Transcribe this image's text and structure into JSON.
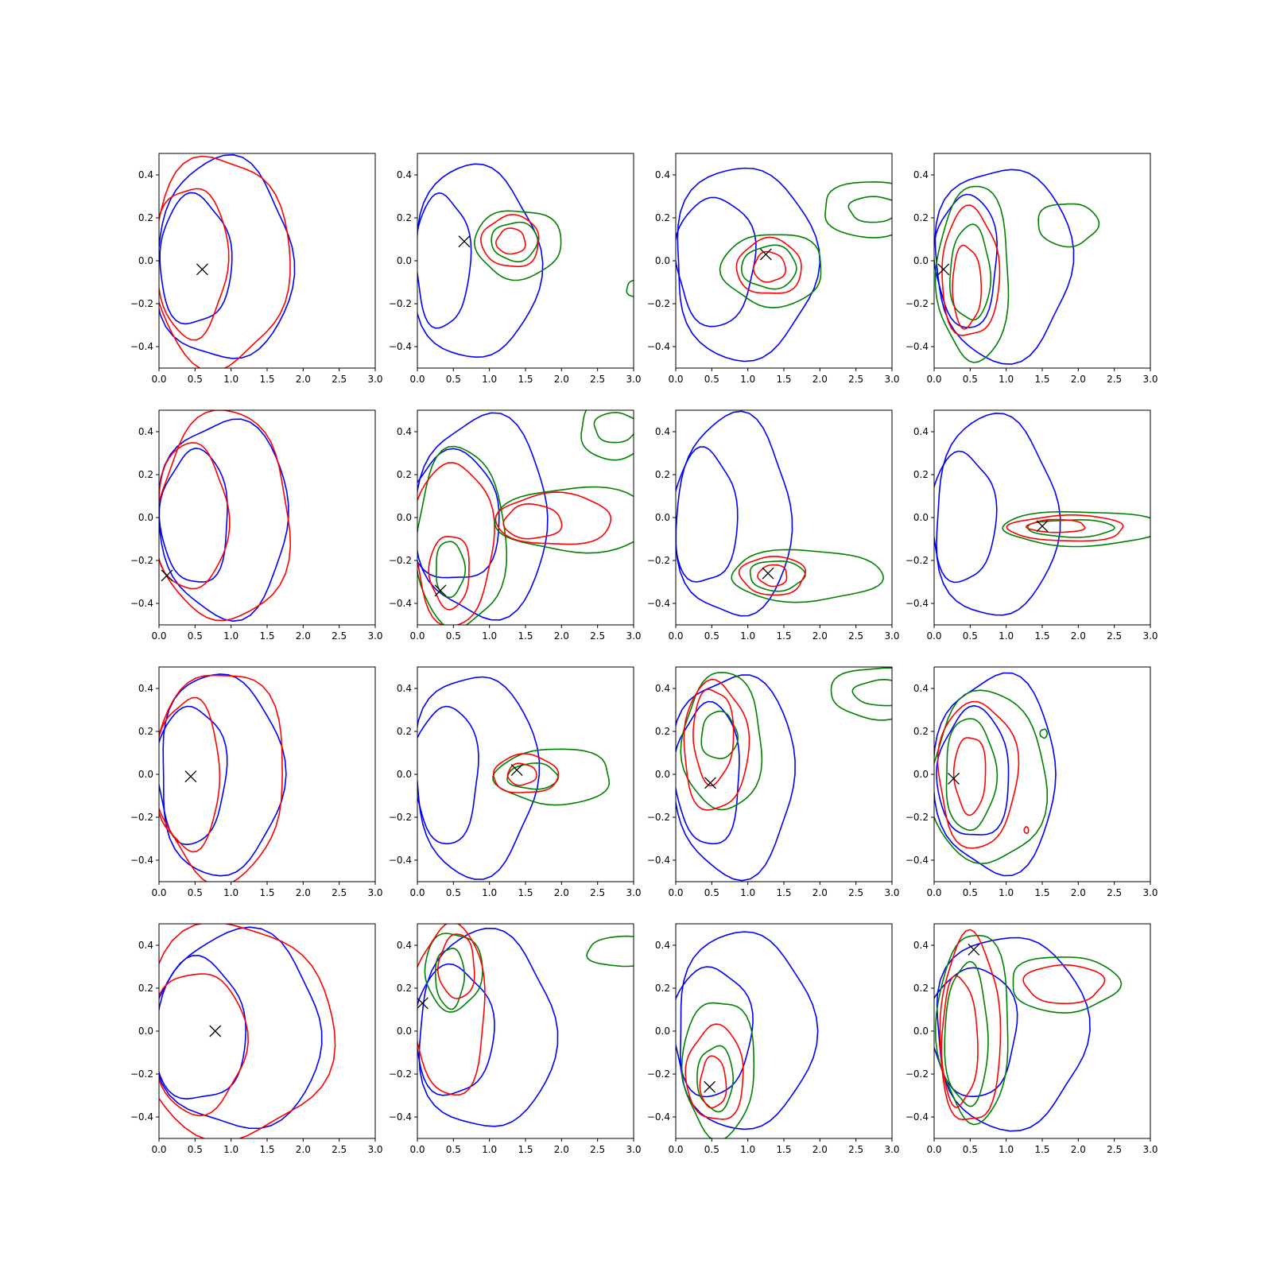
{
  "figure": {
    "rows": 4,
    "cols": 4,
    "xticks": [
      "0.0",
      "0.5",
      "1.0",
      "1.5",
      "2.0",
      "2.5",
      "3.0"
    ],
    "yticks": [
      "−0.4",
      "−0.2",
      "0.0",
      "0.2",
      "0.4"
    ],
    "colors": {
      "blue": "#0000ff",
      "red": "#ff0000",
      "green": "#008000",
      "marker": "#000000"
    }
  },
  "chart_data": [
    {
      "type": "contour",
      "xlim": [
        0,
        3
      ],
      "ylim": [
        -0.5,
        0.5
      ],
      "marker": [
        0.6,
        -0.04
      ],
      "contours": [
        {
          "color": "blue",
          "cx": 0.9,
          "cy": 0.0,
          "rx": 0.95,
          "ry": 0.47
        },
        {
          "color": "blue",
          "cx": 0.5,
          "cy": 0.0,
          "rx": 0.5,
          "ry": 0.3
        },
        {
          "color": "red",
          "cx": 0.85,
          "cy": 0.0,
          "rx": 0.95,
          "ry": 0.49
        },
        {
          "color": "red",
          "cx": 0.45,
          "cy": 0.0,
          "rx": 0.5,
          "ry": 0.35
        }
      ]
    },
    {
      "type": "contour",
      "xlim": [
        0,
        3
      ],
      "ylim": [
        -0.5,
        0.5
      ],
      "marker": [
        0.65,
        0.09
      ],
      "contours": [
        {
          "color": "blue",
          "cx": 0.8,
          "cy": -0.01,
          "rx": 0.88,
          "ry": 0.45
        },
        {
          "color": "blue",
          "cx": 0.35,
          "cy": 0.0,
          "rx": 0.38,
          "ry": 0.31
        },
        {
          "color": "green",
          "cx": 1.4,
          "cy": 0.08,
          "rx": 0.6,
          "ry": 0.16
        },
        {
          "color": "green",
          "cx": 1.35,
          "cy": 0.09,
          "rx": 0.32,
          "ry": 0.09
        },
        {
          "color": "red",
          "cx": 1.3,
          "cy": 0.09,
          "rx": 0.4,
          "ry": 0.12
        },
        {
          "color": "red",
          "cx": 1.3,
          "cy": 0.09,
          "rx": 0.2,
          "ry": 0.06
        },
        {
          "color": "green",
          "cx": 3.05,
          "cy": -0.13,
          "rx": 0.15,
          "ry": 0.04
        }
      ]
    },
    {
      "type": "contour",
      "xlim": [
        0,
        3
      ],
      "ylim": [
        -0.5,
        0.5
      ],
      "marker": [
        1.25,
        0.03
      ],
      "contours": [
        {
          "color": "blue",
          "cx": 0.95,
          "cy": -0.01,
          "rx": 0.98,
          "ry": 0.45
        },
        {
          "color": "blue",
          "cx": 0.55,
          "cy": 0.0,
          "rx": 0.55,
          "ry": 0.3
        },
        {
          "color": "green",
          "cx": 1.35,
          "cy": -0.04,
          "rx": 0.7,
          "ry": 0.17
        },
        {
          "color": "green",
          "cx": 1.3,
          "cy": -0.03,
          "rx": 0.38,
          "ry": 0.1
        },
        {
          "color": "red",
          "cx": 1.3,
          "cy": -0.03,
          "rx": 0.45,
          "ry": 0.13
        },
        {
          "color": "red",
          "cx": 1.3,
          "cy": -0.03,
          "rx": 0.22,
          "ry": 0.07
        },
        {
          "color": "green",
          "cx": 2.75,
          "cy": 0.24,
          "rx": 0.72,
          "ry": 0.13
        },
        {
          "color": "green",
          "cx": 2.75,
          "cy": 0.24,
          "rx": 0.35,
          "ry": 0.06
        }
      ]
    },
    {
      "type": "contour",
      "xlim": [
        0,
        3
      ],
      "ylim": [
        -0.5,
        0.5
      ],
      "marker": [
        0.13,
        -0.04
      ],
      "contours": [
        {
          "color": "blue",
          "cx": 0.95,
          "cy": -0.01,
          "rx": 0.95,
          "ry": 0.45
        },
        {
          "color": "blue",
          "cx": 0.45,
          "cy": 0.0,
          "rx": 0.43,
          "ry": 0.31
        },
        {
          "color": "green",
          "cx": 0.55,
          "cy": -0.06,
          "rx": 0.5,
          "ry": 0.41
        },
        {
          "color": "green",
          "cx": 0.5,
          "cy": -0.06,
          "rx": 0.28,
          "ry": 0.22
        },
        {
          "color": "red",
          "cx": 0.5,
          "cy": -0.06,
          "rx": 0.4,
          "ry": 0.3
        },
        {
          "color": "red",
          "cx": 0.45,
          "cy": -0.12,
          "rx": 0.2,
          "ry": 0.19
        },
        {
          "color": "green",
          "cx": 1.85,
          "cy": 0.17,
          "rx": 0.42,
          "ry": 0.1
        }
      ]
    },
    {
      "type": "contour",
      "xlim": [
        0,
        3
      ],
      "ylim": [
        -0.5,
        0.5
      ],
      "marker": [
        0.11,
        -0.27
      ],
      "contours": [
        {
          "color": "blue",
          "cx": 0.9,
          "cy": 0.0,
          "rx": 0.9,
          "ry": 0.46
        },
        {
          "color": "blue",
          "cx": 0.5,
          "cy": 0.0,
          "rx": 0.47,
          "ry": 0.31
        },
        {
          "color": "red",
          "cx": 0.9,
          "cy": 0.0,
          "rx": 0.92,
          "ry": 0.49
        },
        {
          "color": "red",
          "cx": 0.45,
          "cy": 0.0,
          "rx": 0.5,
          "ry": 0.34
        }
      ]
    },
    {
      "type": "contour",
      "xlim": [
        0,
        3
      ],
      "ylim": [
        -0.5,
        0.5
      ],
      "marker": [
        0.32,
        -0.34
      ],
      "contours": [
        {
          "color": "blue",
          "cx": 0.9,
          "cy": 0.0,
          "rx": 0.92,
          "ry": 0.47
        },
        {
          "color": "blue",
          "cx": 0.5,
          "cy": 0.0,
          "rx": 0.65,
          "ry": 0.3
        },
        {
          "color": "green",
          "cx": 0.6,
          "cy": -0.1,
          "rx": 0.62,
          "ry": 0.42
        },
        {
          "color": "green",
          "cx": 0.45,
          "cy": -0.24,
          "rx": 0.2,
          "ry": 0.13
        },
        {
          "color": "red",
          "cx": 0.5,
          "cy": -0.12,
          "rx": 0.55,
          "ry": 0.38
        },
        {
          "color": "red",
          "cx": 0.45,
          "cy": -0.25,
          "rx": 0.28,
          "ry": 0.17
        },
        {
          "color": "green",
          "cx": 2.2,
          "cy": -0.01,
          "rx": 1.1,
          "ry": 0.15
        },
        {
          "color": "red",
          "cx": 1.9,
          "cy": -0.01,
          "rx": 0.8,
          "ry": 0.12
        },
        {
          "color": "red",
          "cx": 1.6,
          "cy": -0.02,
          "rx": 0.4,
          "ry": 0.08
        },
        {
          "color": "green",
          "cx": 2.75,
          "cy": 0.41,
          "rx": 0.5,
          "ry": 0.14
        },
        {
          "color": "green",
          "cx": 2.75,
          "cy": 0.42,
          "rx": 0.3,
          "ry": 0.07
        }
      ]
    },
    {
      "type": "contour",
      "xlim": [
        0,
        3
      ],
      "ylim": [
        -0.5,
        0.5
      ],
      "marker": [
        1.28,
        -0.26
      ],
      "contours": [
        {
          "color": "blue",
          "cx": 0.8,
          "cy": 0.0,
          "rx": 0.8,
          "ry": 0.47
        },
        {
          "color": "blue",
          "cx": 0.4,
          "cy": 0.0,
          "rx": 0.45,
          "ry": 0.31
        },
        {
          "color": "green",
          "cx": 1.8,
          "cy": -0.27,
          "rx": 1.05,
          "ry": 0.12
        },
        {
          "color": "green",
          "cx": 1.4,
          "cy": -0.27,
          "rx": 0.38,
          "ry": 0.07
        },
        {
          "color": "red",
          "cx": 1.35,
          "cy": -0.27,
          "rx": 0.45,
          "ry": 0.09
        },
        {
          "color": "red",
          "cx": 1.35,
          "cy": -0.27,
          "rx": 0.2,
          "ry": 0.05
        }
      ]
    },
    {
      "type": "contour",
      "xlim": [
        0,
        3
      ],
      "ylim": [
        -0.5,
        0.5
      ],
      "marker": [
        1.5,
        -0.04
      ],
      "contours": [
        {
          "color": "blue",
          "cx": 0.85,
          "cy": 0.0,
          "rx": 0.85,
          "ry": 0.47
        },
        {
          "color": "blue",
          "cx": 0.4,
          "cy": 0.0,
          "rx": 0.45,
          "ry": 0.3
        },
        {
          "color": "green",
          "cx": 2.05,
          "cy": -0.05,
          "rx": 1.1,
          "ry": 0.08
        },
        {
          "color": "green",
          "cx": 1.9,
          "cy": -0.05,
          "rx": 0.6,
          "ry": 0.04
        },
        {
          "color": "red",
          "cx": 1.85,
          "cy": -0.05,
          "rx": 0.8,
          "ry": 0.06
        },
        {
          "color": "red",
          "cx": 1.7,
          "cy": -0.04,
          "rx": 0.4,
          "ry": 0.03
        }
      ]
    },
    {
      "type": "contour",
      "xlim": [
        0,
        3
      ],
      "ylim": [
        -0.5,
        0.5
      ],
      "marker": [
        0.44,
        -0.01
      ],
      "contours": [
        {
          "color": "blue",
          "cx": 0.85,
          "cy": 0.0,
          "rx": 0.85,
          "ry": 0.47
        },
        {
          "color": "blue",
          "cx": 0.45,
          "cy": 0.0,
          "rx": 0.48,
          "ry": 0.32
        },
        {
          "color": "red",
          "cx": 0.85,
          "cy": 0.0,
          "rx": 0.9,
          "ry": 0.49
        },
        {
          "color": "red",
          "cx": 0.4,
          "cy": 0.0,
          "rx": 0.45,
          "ry": 0.35
        }
      ]
    },
    {
      "type": "contour",
      "xlim": [
        0,
        3
      ],
      "ylim": [
        -0.5,
        0.5
      ],
      "marker": [
        1.38,
        0.02
      ],
      "contours": [
        {
          "color": "blue",
          "cx": 0.8,
          "cy": 0.0,
          "rx": 0.85,
          "ry": 0.47
        },
        {
          "color": "blue",
          "cx": 0.4,
          "cy": 0.0,
          "rx": 0.45,
          "ry": 0.32
        },
        {
          "color": "green",
          "cx": 1.9,
          "cy": -0.01,
          "rx": 0.8,
          "ry": 0.13
        },
        {
          "color": "green",
          "cx": 1.6,
          "cy": -0.01,
          "rx": 0.35,
          "ry": 0.06
        },
        {
          "color": "red",
          "cx": 1.5,
          "cy": 0.0,
          "rx": 0.45,
          "ry": 0.09
        },
        {
          "color": "red",
          "cx": 1.45,
          "cy": 0.0,
          "rx": 0.2,
          "ry": 0.05
        }
      ]
    },
    {
      "type": "contour",
      "xlim": [
        0,
        3
      ],
      "ylim": [
        -0.5,
        0.5
      ],
      "marker": [
        0.48,
        -0.04
      ],
      "contours": [
        {
          "color": "blue",
          "cx": 0.8,
          "cy": 0.0,
          "rx": 0.85,
          "ry": 0.47
        },
        {
          "color": "blue",
          "cx": 0.45,
          "cy": 0.0,
          "rx": 0.45,
          "ry": 0.33
        },
        {
          "color": "green",
          "cx": 0.65,
          "cy": 0.15,
          "rx": 0.55,
          "ry": 0.32
        },
        {
          "color": "green",
          "cx": 0.6,
          "cy": 0.18,
          "rx": 0.25,
          "ry": 0.11
        },
        {
          "color": "red",
          "cx": 0.55,
          "cy": 0.13,
          "rx": 0.45,
          "ry": 0.3
        },
        {
          "color": "red",
          "cx": 0.52,
          "cy": 0.18,
          "rx": 0.28,
          "ry": 0.22
        },
        {
          "color": "green",
          "cx": 2.8,
          "cy": 0.38,
          "rx": 0.65,
          "ry": 0.12
        },
        {
          "color": "green",
          "cx": 2.85,
          "cy": 0.38,
          "rx": 0.38,
          "ry": 0.06
        }
      ]
    },
    {
      "type": "contour",
      "xlim": [
        0,
        3
      ],
      "ylim": [
        -0.5,
        0.5
      ],
      "marker": [
        0.27,
        -0.02
      ],
      "contours": [
        {
          "color": "blue",
          "cx": 0.85,
          "cy": 0.0,
          "rx": 0.85,
          "ry": 0.46
        },
        {
          "color": "blue",
          "cx": 0.55,
          "cy": 0.0,
          "rx": 0.5,
          "ry": 0.3
        },
        {
          "color": "green",
          "cx": 0.75,
          "cy": -0.02,
          "rx": 0.8,
          "ry": 0.4
        },
        {
          "color": "green",
          "cx": 0.5,
          "cy": 0.0,
          "rx": 0.35,
          "ry": 0.26
        },
        {
          "color": "red",
          "cx": 0.6,
          "cy": 0.0,
          "rx": 0.55,
          "ry": 0.34
        },
        {
          "color": "red",
          "cx": 0.5,
          "cy": 0.0,
          "rx": 0.22,
          "ry": 0.18
        },
        {
          "color": "green",
          "cx": 1.52,
          "cy": 0.19,
          "rx": 0.05,
          "ry": 0.02
        },
        {
          "color": "red",
          "cx": 1.28,
          "cy": -0.26,
          "rx": 0.03,
          "ry": 0.015
        }
      ]
    },
    {
      "type": "contour",
      "xlim": [
        0,
        3
      ],
      "ylim": [
        -0.5,
        0.5
      ],
      "marker": [
        0.78,
        0.0
      ],
      "contours": [
        {
          "color": "blue",
          "cx": 1.1,
          "cy": 0.0,
          "rx": 1.15,
          "ry": 0.46
        },
        {
          "color": "blue",
          "cx": 0.55,
          "cy": 0.0,
          "rx": 0.65,
          "ry": 0.33
        },
        {
          "color": "red",
          "cx": 1.05,
          "cy": 0.0,
          "rx": 1.35,
          "ry": 0.5
        },
        {
          "color": "red",
          "cx": 0.55,
          "cy": -0.05,
          "rx": 0.65,
          "ry": 0.33
        }
      ]
    },
    {
      "type": "contour",
      "xlim": [
        0,
        3
      ],
      "ylim": [
        -0.5,
        0.5
      ],
      "marker": [
        0.07,
        0.13
      ],
      "contours": [
        {
          "color": "blue",
          "cx": 0.95,
          "cy": 0.0,
          "rx": 0.95,
          "ry": 0.46
        },
        {
          "color": "blue",
          "cx": 0.5,
          "cy": 0.0,
          "rx": 0.55,
          "ry": 0.3
        },
        {
          "color": "green",
          "cx": 0.5,
          "cy": 0.28,
          "rx": 0.4,
          "ry": 0.18
        },
        {
          "color": "green",
          "cx": 0.45,
          "cy": 0.25,
          "rx": 0.2,
          "ry": 0.14
        },
        {
          "color": "red",
          "cx": 0.45,
          "cy": 0.1,
          "rx": 0.5,
          "ry": 0.4
        },
        {
          "color": "red",
          "cx": 0.55,
          "cy": 0.3,
          "rx": 0.25,
          "ry": 0.15
        },
        {
          "color": "green",
          "cx": 2.85,
          "cy": 0.37,
          "rx": 0.5,
          "ry": 0.07
        }
      ]
    },
    {
      "type": "contour",
      "xlim": [
        0,
        3
      ],
      "ylim": [
        -0.5,
        0.5
      ],
      "marker": [
        0.47,
        -0.26
      ],
      "contours": [
        {
          "color": "blue",
          "cx": 0.95,
          "cy": 0.0,
          "rx": 0.95,
          "ry": 0.46
        },
        {
          "color": "blue",
          "cx": 0.5,
          "cy": 0.0,
          "rx": 0.55,
          "ry": 0.3
        },
        {
          "color": "green",
          "cx": 0.6,
          "cy": -0.17,
          "rx": 0.5,
          "ry": 0.32
        },
        {
          "color": "green",
          "cx": 0.55,
          "cy": -0.22,
          "rx": 0.25,
          "ry": 0.15
        },
        {
          "color": "red",
          "cx": 0.55,
          "cy": -0.2,
          "rx": 0.4,
          "ry": 0.22
        },
        {
          "color": "red",
          "cx": 0.52,
          "cy": -0.24,
          "rx": 0.18,
          "ry": 0.12
        }
      ]
    },
    {
      "type": "contour",
      "xlim": [
        0,
        3
      ],
      "ylim": [
        -0.5,
        0.5
      ],
      "marker": [
        0.55,
        0.38
      ],
      "contours": [
        {
          "color": "blue",
          "cx": 1.05,
          "cy": 0.0,
          "rx": 1.05,
          "ry": 0.45
        },
        {
          "color": "blue",
          "cx": 0.55,
          "cy": 0.0,
          "rx": 0.6,
          "ry": 0.3
        },
        {
          "color": "green",
          "cx": 0.55,
          "cy": 0.02,
          "rx": 0.5,
          "ry": 0.44
        },
        {
          "color": "green",
          "cx": 0.45,
          "cy": -0.02,
          "rx": 0.3,
          "ry": 0.33
        },
        {
          "color": "red",
          "cx": 0.5,
          "cy": 0.0,
          "rx": 0.42,
          "ry": 0.44
        },
        {
          "color": "red",
          "cx": 0.35,
          "cy": -0.05,
          "rx": 0.25,
          "ry": 0.3
        },
        {
          "color": "green",
          "cx": 1.8,
          "cy": 0.22,
          "rx": 0.75,
          "ry": 0.13
        },
        {
          "color": "red",
          "cx": 1.8,
          "cy": 0.22,
          "rx": 0.55,
          "ry": 0.09
        }
      ]
    }
  ]
}
